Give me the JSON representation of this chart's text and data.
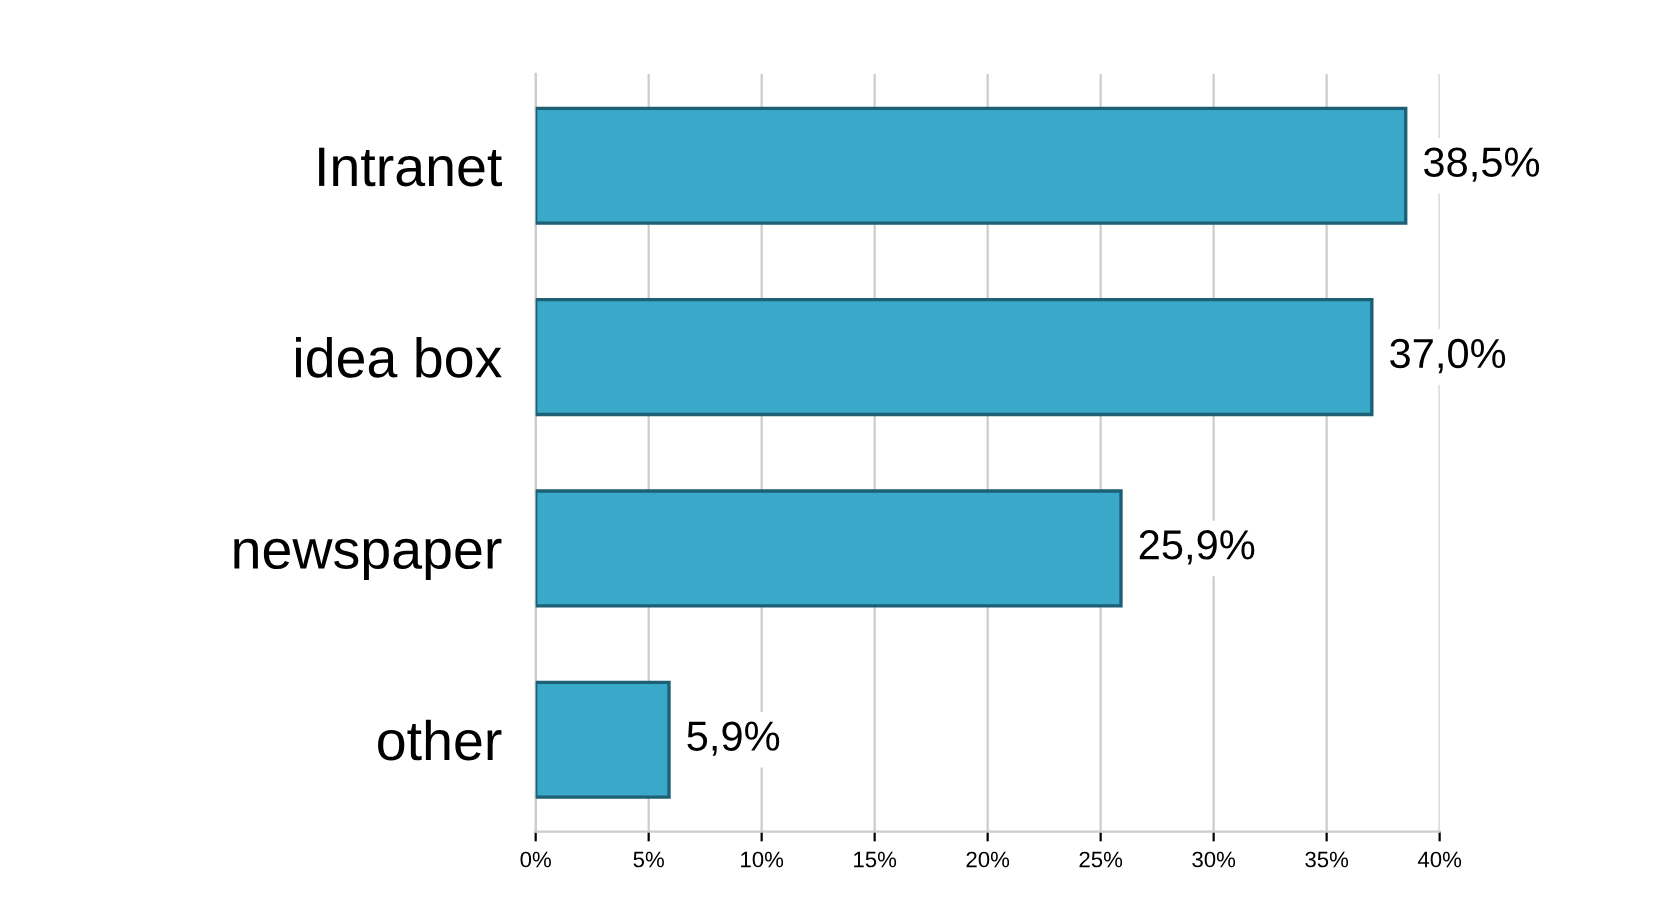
{
  "chart_data": {
    "type": "bar",
    "orientation": "horizontal",
    "categories": [
      "Intranet",
      "idea box",
      "newspaper",
      "other"
    ],
    "values": [
      38.5,
      37.0,
      25.9,
      5.9
    ],
    "value_labels": [
      "38,5%",
      "37,0%",
      "25,9%",
      "5,9%"
    ],
    "color": "#3aa9c9",
    "xlim": [
      0,
      40
    ],
    "xticks": [
      {
        "value": 0,
        "label": "0%"
      },
      {
        "value": 5,
        "label": "5%"
      },
      {
        "value": 10,
        "label": "10%"
      },
      {
        "value": 15,
        "label": "15%"
      },
      {
        "value": 20,
        "label": "20%"
      },
      {
        "value": 25,
        "label": "25%"
      },
      {
        "value": 30,
        "label": "30%"
      },
      {
        "value": 35,
        "label": "35%"
      },
      {
        "value": 40,
        "label": "40%"
      }
    ],
    "grid": "x",
    "legend": false
  }
}
